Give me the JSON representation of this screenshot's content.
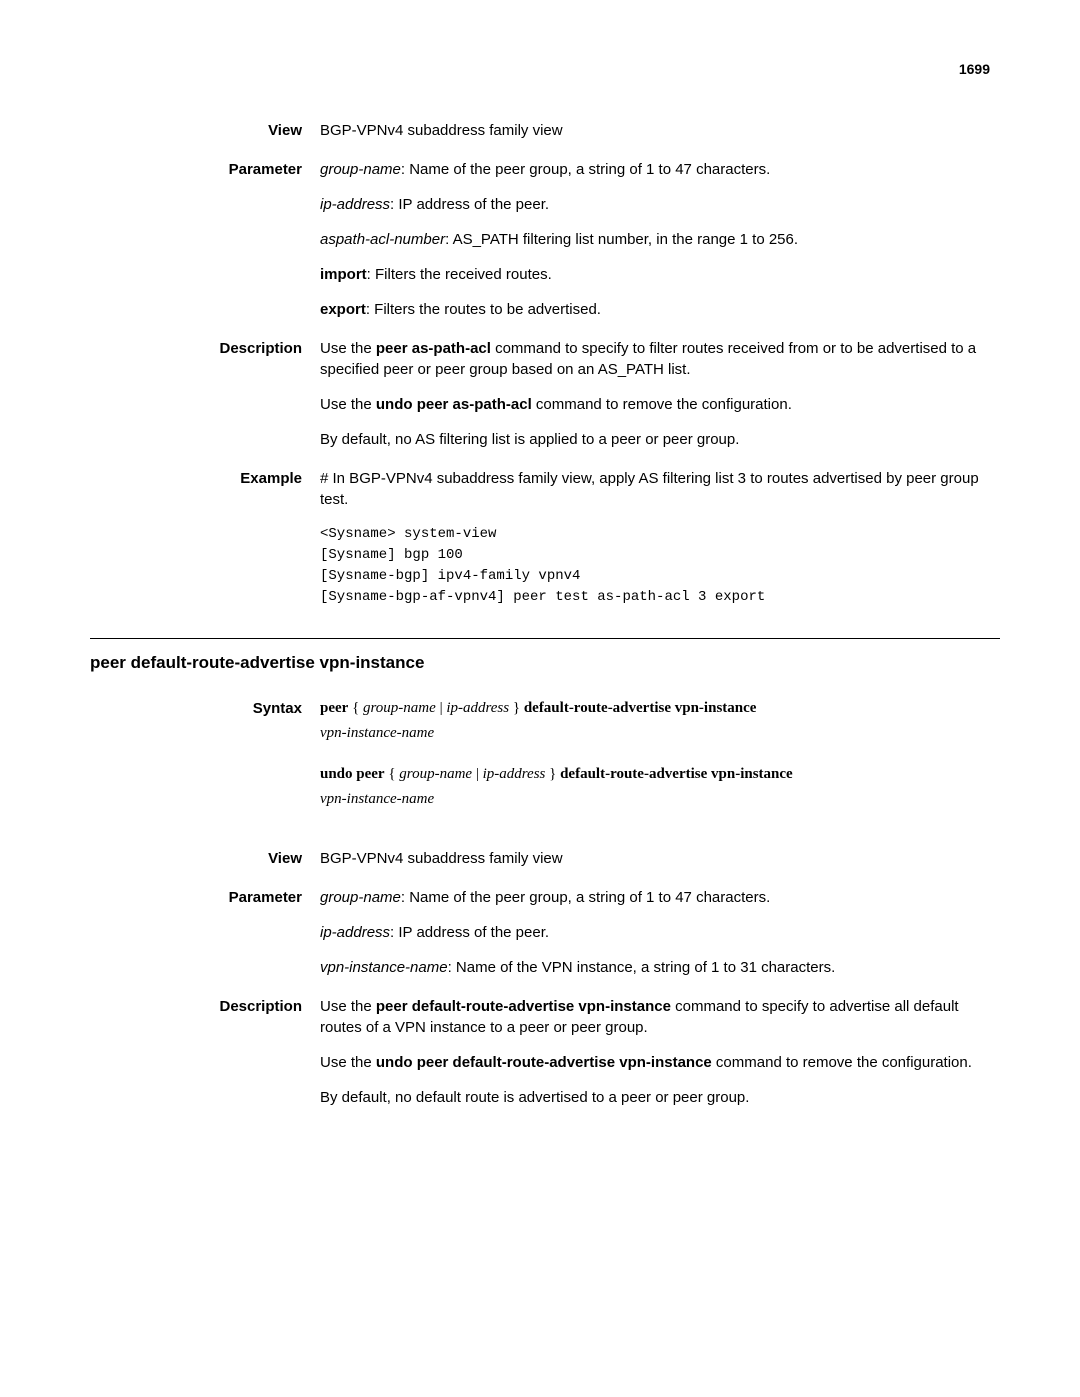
{
  "pageNumber": "1699",
  "section1": {
    "view": {
      "label": "View",
      "text": "BGP-VPNv4 subaddress family view"
    },
    "parameter": {
      "label": "Parameter",
      "p1_italic": "group-name",
      "p1_rest": ": Name of the peer group, a string of 1 to 47 characters.",
      "p2_italic": "ip-address",
      "p2_rest": ": IP address of the peer.",
      "p3_italic": "aspath-acl-number",
      "p3_rest": ": AS_PATH filtering list number, in the range 1 to 256.",
      "p4_bold": "import",
      "p4_rest": ": Filters the received routes.",
      "p5_bold": "export",
      "p5_rest": ": Filters the routes to be advertised."
    },
    "description": {
      "label": "Description",
      "p1_a": "Use the ",
      "p1_bold": "peer as-path-acl",
      "p1_b": " command to specify to filter routes received from or to be advertised to a specified peer or peer group based on an AS_PATH list.",
      "p2_a": "Use the ",
      "p2_bold": "undo peer as-path-acl",
      "p2_b": " command to remove the configuration.",
      "p3": "By default, no AS filtering list is applied to a peer or peer group."
    },
    "example": {
      "label": "Example",
      "intro": "# In BGP-VPNv4 subaddress family view, apply AS filtering list 3 to routes advertised by peer group test.",
      "code": "<Sysname> system-view\n[Sysname] bgp 100\n[Sysname-bgp] ipv4-family vpnv4\n[Sysname-bgp-af-vpnv4] peer test as-path-acl 3 export"
    }
  },
  "section2": {
    "title": "peer default-route-advertise vpn-instance",
    "syntax": {
      "label": "Syntax",
      "l1_b1": "peer",
      "l1_a": " { ",
      "l1_i1": "group-name",
      "l1_b": " | ",
      "l1_i2": "ip-address",
      "l1_c": " } ",
      "l1_b2": "default-route-advertise vpn-instance",
      "l1_i3": "vpn-instance-name",
      "l2_b1": "undo peer",
      "l2_a": " { ",
      "l2_i1": "group-name",
      "l2_b": " | ",
      "l2_i2": "ip-address",
      "l2_c": " } ",
      "l2_b2": "default-route-advertise vpn-instance",
      "l2_i3": "vpn-instance-name"
    },
    "view": {
      "label": "View",
      "text": "BGP-VPNv4 subaddress family view"
    },
    "parameter": {
      "label": "Parameter",
      "p1_italic": "group-name",
      "p1_rest": ": Name of the peer group, a string of 1 to 47 characters.",
      "p2_italic": "ip-address",
      "p2_rest": ": IP address of the peer.",
      "p3_italic": "vpn-instance-name",
      "p3_rest": ": Name of the VPN instance, a string of 1 to 31 characters."
    },
    "description": {
      "label": "Description",
      "p1_a": "Use the ",
      "p1_bold": "peer default-route-advertise vpn-instance",
      "p1_b": " command to specify to advertise all default routes of a VPN instance to a peer or peer group.",
      "p2_a": "Use the ",
      "p2_bold": "undo peer default-route-advertise vpn-instance",
      "p2_b": " command to remove the configuration.",
      "p3": "By default, no default route is advertised to a peer or peer group."
    }
  }
}
